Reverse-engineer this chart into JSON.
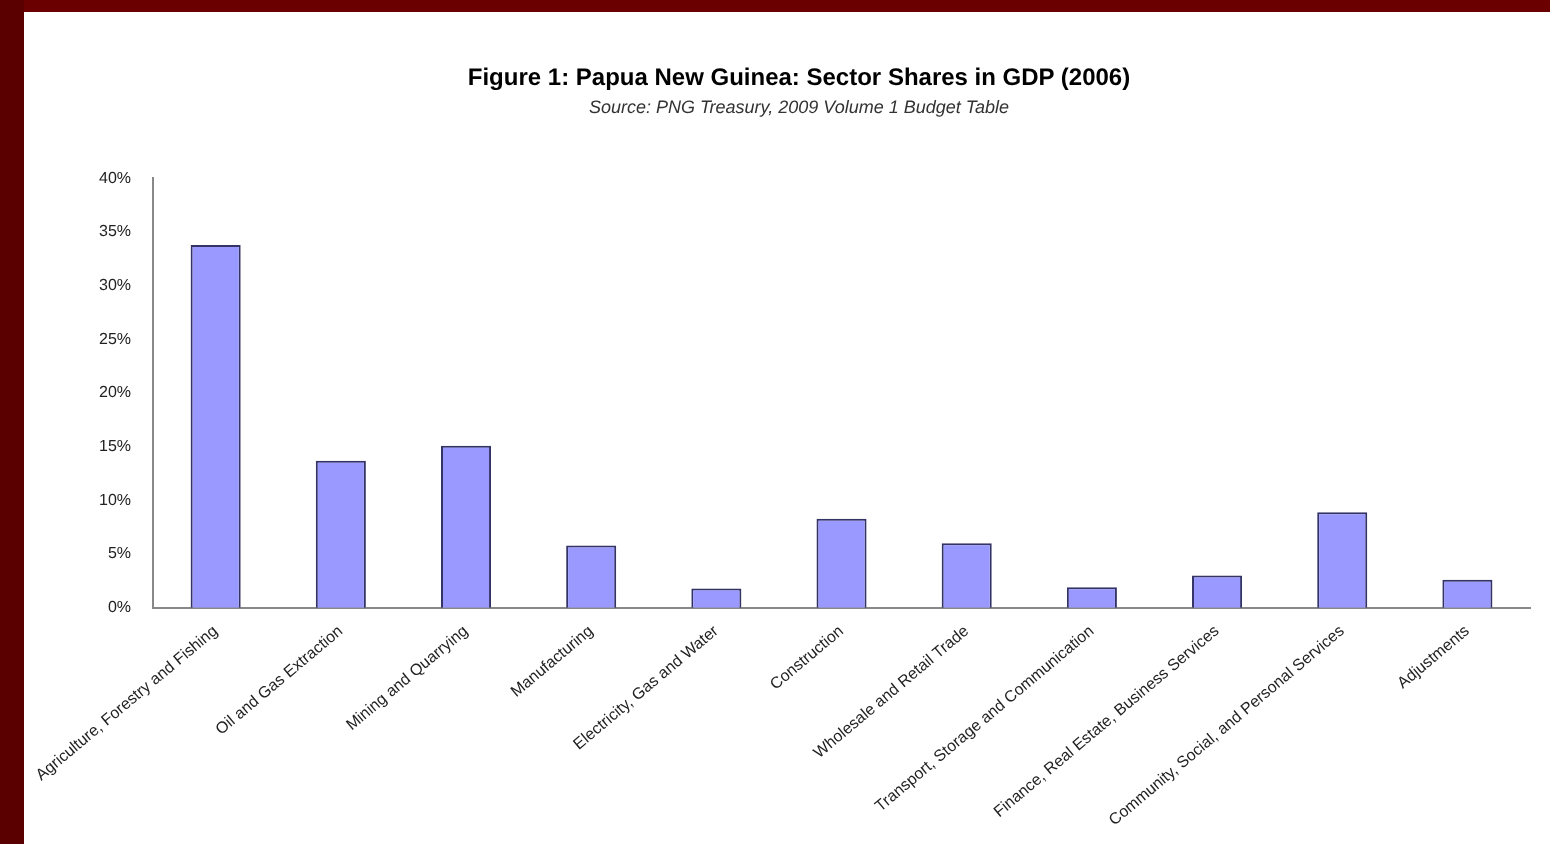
{
  "chart_data": {
    "type": "bar",
    "title": "Figure 1: Papua New Guinea: Sector Shares in GDP (2006)",
    "subtitle": "Source: PNG Treasury, 2009 Volume 1 Budget Table",
    "categories": [
      "Agriculture, Forestry and Fishing",
      "Oil and Gas Extraction",
      "Mining and Quarrying",
      "Manufacturing",
      "Electricity, Gas and Water",
      "Construction",
      "Wholesale and Retail Trade",
      "Transport, Storage and Communication",
      "Finance, Real Estate, Business Services",
      "Community, Social, and Personal Services",
      "Adjustments"
    ],
    "values": [
      33.8,
      13.7,
      15.1,
      5.8,
      1.8,
      8.3,
      6.0,
      1.9,
      3.0,
      8.9,
      2.6
    ],
    "color": "#9999ff",
    "ylim": [
      0,
      40
    ],
    "yticks": [
      {
        "value": 0,
        "label": "0%"
      },
      {
        "value": 5,
        "label": "5%"
      },
      {
        "value": 10,
        "label": "10%"
      },
      {
        "value": 15,
        "label": "15%"
      },
      {
        "value": 20,
        "label": "20%"
      },
      {
        "value": 25,
        "label": "25%"
      },
      {
        "value": 30,
        "label": "30%"
      },
      {
        "value": 35,
        "label": "35%"
      },
      {
        "value": 40,
        "label": "40%"
      }
    ],
    "grid": false,
    "legend": false
  }
}
